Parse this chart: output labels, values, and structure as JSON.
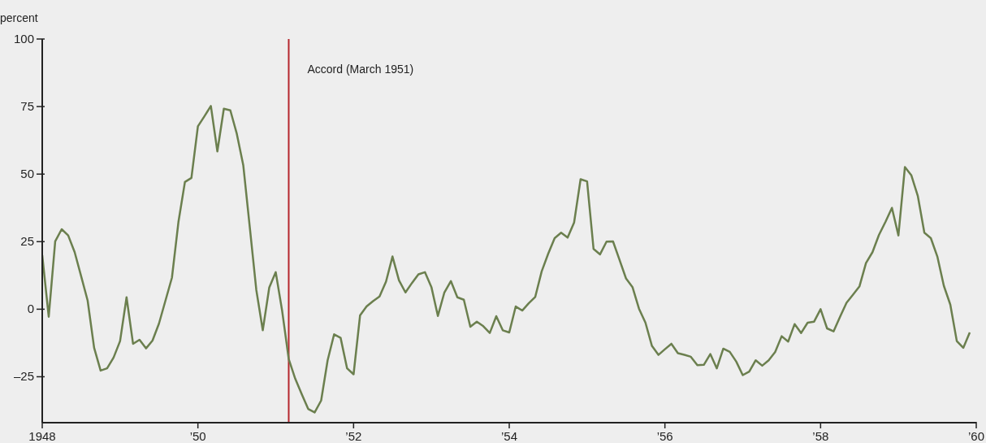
{
  "chart_data": {
    "type": "line",
    "ylabel": "percent",
    "x": [
      "1948-01",
      "1948-02",
      "1948-03",
      "1948-04",
      "1948-05",
      "1948-06",
      "1948-07",
      "1948-08",
      "1948-09",
      "1948-10",
      "1948-11",
      "1948-12",
      "1949-01",
      "1949-02",
      "1949-03",
      "1949-04",
      "1949-05",
      "1949-06",
      "1949-07",
      "1949-08",
      "1949-09",
      "1949-10",
      "1949-11",
      "1949-12",
      "1950-01",
      "1950-02",
      "1950-03",
      "1950-04",
      "1950-05",
      "1950-06",
      "1950-07",
      "1950-08",
      "1950-09",
      "1950-10",
      "1950-11",
      "1950-12",
      "1951-01",
      "1951-02",
      "1951-03",
      "1951-04",
      "1951-05",
      "1951-06",
      "1951-07",
      "1951-08",
      "1951-09",
      "1951-10",
      "1951-11",
      "1951-12",
      "1952-01",
      "1952-02",
      "1952-03",
      "1952-04",
      "1952-05",
      "1952-06",
      "1952-07",
      "1952-08",
      "1952-09",
      "1952-10",
      "1952-11",
      "1952-12",
      "1953-01",
      "1953-02",
      "1953-03",
      "1953-04",
      "1953-05",
      "1953-06",
      "1953-07",
      "1953-08",
      "1953-09",
      "1953-10",
      "1953-11",
      "1953-12",
      "1954-01",
      "1954-02",
      "1954-03",
      "1954-04",
      "1954-05",
      "1954-06",
      "1954-07",
      "1954-08",
      "1954-09",
      "1954-10",
      "1954-11",
      "1954-12",
      "1955-01",
      "1955-02",
      "1955-03",
      "1955-04",
      "1955-05",
      "1955-06",
      "1955-07",
      "1955-08",
      "1955-09",
      "1955-10",
      "1955-11",
      "1955-12",
      "1956-01",
      "1956-02",
      "1956-03",
      "1956-04",
      "1956-05",
      "1956-06",
      "1956-07",
      "1956-08",
      "1956-09",
      "1956-10",
      "1956-11",
      "1956-12",
      "1957-01",
      "1957-02",
      "1957-03",
      "1957-04",
      "1957-05",
      "1957-06",
      "1957-07",
      "1957-08",
      "1957-09",
      "1957-10",
      "1957-11",
      "1957-12",
      "1958-01",
      "1958-02",
      "1958-03",
      "1958-04",
      "1958-05",
      "1958-06",
      "1958-07",
      "1958-08",
      "1958-09",
      "1958-10",
      "1958-11",
      "1958-12",
      "1959-01",
      "1959-02",
      "1959-03",
      "1959-04",
      "1959-05",
      "1959-06",
      "1959-07",
      "1959-08",
      "1959-09",
      "1959-10",
      "1959-11",
      "1959-12"
    ],
    "series": [
      {
        "color": "#6b7f4e",
        "values": [
          20.0,
          -2.8,
          25.1,
          29.6,
          27.3,
          21.1,
          12.2,
          3.2,
          -14.3,
          -22.7,
          -21.9,
          -17.9,
          -11.8,
          4.4,
          -12.8,
          -11.3,
          -14.5,
          -11.6,
          -5.3,
          3.2,
          11.7,
          32.3,
          47.1,
          48.6,
          67.7,
          71.4,
          75.2,
          58.4,
          74.2,
          73.6,
          64.9,
          53.2,
          30.3,
          7.2,
          -7.8,
          8.0,
          13.7,
          -0.8,
          -18.4,
          -25.7,
          -31.4,
          -36.9,
          -38.2,
          -33.8,
          -18.9,
          -9.3,
          -10.6,
          -21.9,
          -24.1,
          -2.3,
          1.0,
          3.0,
          4.7,
          10.2,
          19.5,
          10.7,
          6.2,
          9.7,
          12.9,
          13.7,
          8.2,
          -2.5,
          6.2,
          10.4,
          4.4,
          3.5,
          -6.5,
          -4.6,
          -6.3,
          -8.8,
          -2.6,
          -7.8,
          -8.6,
          1.0,
          -0.5,
          2.2,
          4.5,
          14.0,
          20.5,
          26.3,
          28.3,
          26.5,
          32.1,
          48.1,
          47.3,
          22.3,
          20.3,
          25.0,
          25.1,
          18.3,
          11.4,
          8.2,
          0.2,
          -5.0,
          -13.6,
          -16.9,
          -14.8,
          -12.8,
          -16.3,
          -16.9,
          -17.6,
          -20.7,
          -20.6,
          -16.6,
          -21.9,
          -14.6,
          -15.8,
          -19.4,
          -24.4,
          -23.1,
          -18.9,
          -20.9,
          -18.9,
          -15.8,
          -10.0,
          -12.0,
          -5.5,
          -8.8,
          -5.0,
          -4.6,
          0.0,
          -7.1,
          -8.2,
          -2.8,
          2.4,
          5.4,
          8.5,
          17.1,
          21.1,
          27.5,
          32.3,
          37.5,
          27.3,
          52.6,
          49.5,
          41.8,
          28.3,
          26.3,
          19.5,
          8.7,
          1.7,
          -11.8,
          -14.3,
          -8.6
        ]
      }
    ],
    "xlim": [
      "1948",
      "1960"
    ],
    "xticks": [
      {
        "value": "1948",
        "label": "1948"
      },
      {
        "value": "1950",
        "label": "’50"
      },
      {
        "value": "1952",
        "label": "’52"
      },
      {
        "value": "1954",
        "label": "’54"
      },
      {
        "value": "1956",
        "label": "’56"
      },
      {
        "value": "1958",
        "label": "’58"
      },
      {
        "value": "1960",
        "label": "’60"
      }
    ],
    "ylim": [
      -42,
      100
    ],
    "yticks": [
      {
        "value": -25,
        "label": "–25"
      },
      0,
      25,
      50,
      75,
      100
    ],
    "ref_lines": [
      {
        "axis": "x",
        "value": "1951-03",
        "label": "Accord (March 1951)",
        "color": "#b5282e"
      }
    ],
    "grid": false,
    "legend": false,
    "marker": "none",
    "line_style": "solid"
  }
}
